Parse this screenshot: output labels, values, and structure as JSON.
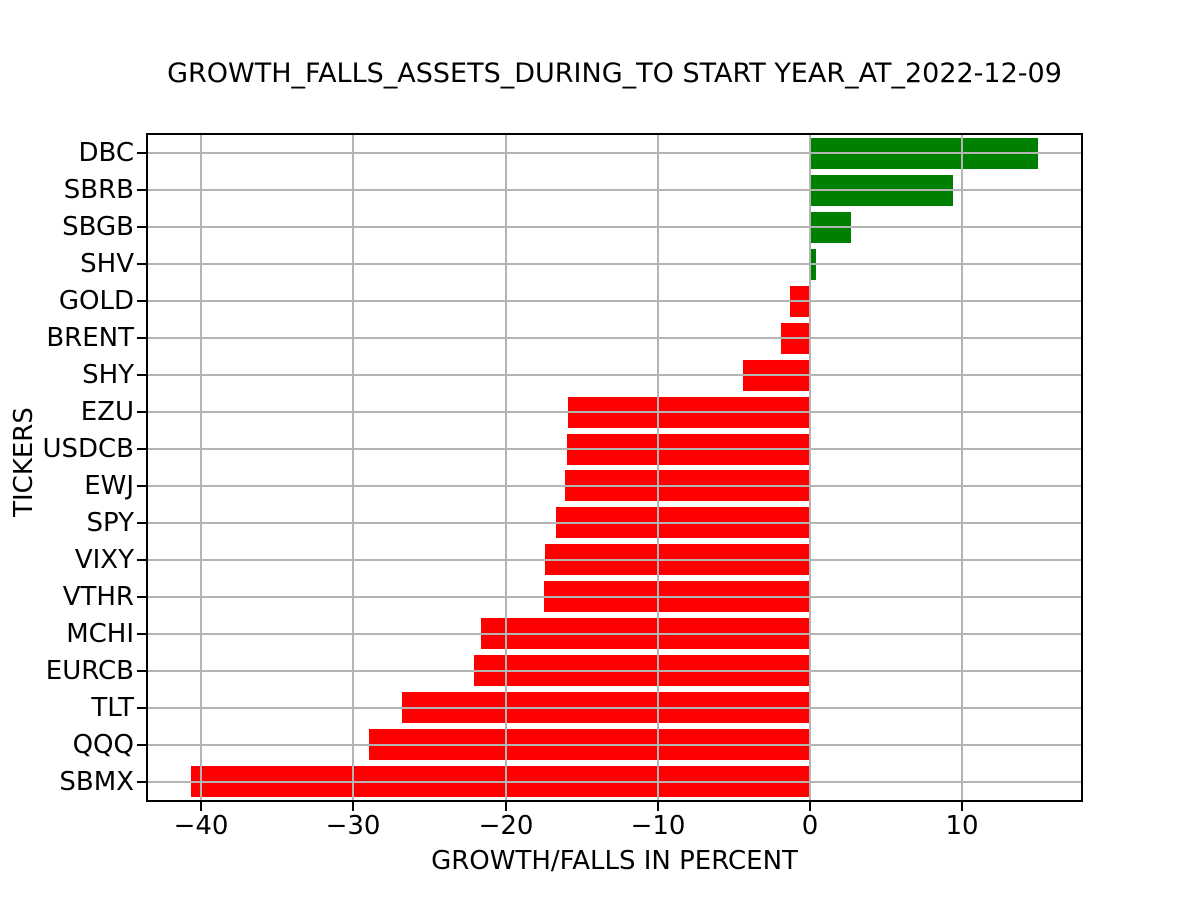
{
  "figure": {
    "title": "GROWTH_FALLS_ASSETS_DURING_TO START YEAR_AT_2022-12-09",
    "xlabel": "GROWTH/FALLS IN PERCENT",
    "ylabel": "TICKERS"
  },
  "chart_data": {
    "type": "bar",
    "orientation": "horizontal",
    "title": "GROWTH_FALLS_ASSETS_DURING_TO START YEAR_AT_2022-12-09",
    "xlabel": "GROWTH/FALLS IN PERCENT",
    "ylabel": "TICKERS",
    "categories": [
      "DBC",
      "SBRB",
      "SBGB",
      "SHV",
      "GOLD",
      "BRENT",
      "SHY",
      "EZU",
      "USDCB",
      "EWJ",
      "SPY",
      "VIXY",
      "VTHR",
      "MCHI",
      "EURCB",
      "TLT",
      "QQQ",
      "SBMX"
    ],
    "values": [
      15.0,
      9.4,
      2.7,
      0.4,
      -1.3,
      -1.9,
      -4.4,
      -15.9,
      -16.0,
      -16.1,
      -16.7,
      -17.4,
      -17.5,
      -21.6,
      -22.1,
      -26.8,
      -29.0,
      -40.7
    ],
    "xticks": [
      -40,
      -30,
      -20,
      -10,
      0,
      10
    ],
    "xlim": [
      -43.5,
      17.8
    ],
    "grid": true,
    "legend": false,
    "colors": {
      "positive_bar": "#008000",
      "negative_bar": "#ff0000",
      "gridline": "#b4b4b4",
      "spine": "#000000",
      "background": "#ffffff",
      "text": "#000000"
    }
  }
}
